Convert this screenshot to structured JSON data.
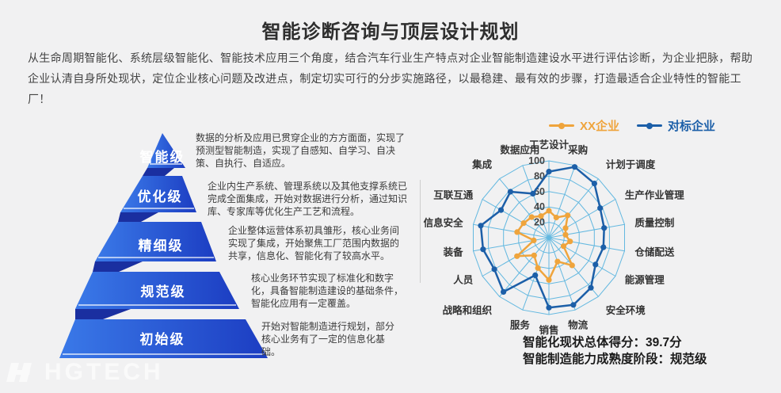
{
  "title": "智能诊断咨询与顶层设计规划",
  "intro": "从生命周期智能化、系统层级智能化、智能技术应用三个角度，结合汽车行业生产特点对企业智能制造建设水平进行评估诊断，为企业把脉，帮助企业认清自身所处现状，定位企业核心问题及改进点，制定切实可行的分步实施路径，以最稳建、最有效的步骤，打造最适合企业特性的智能工厂！",
  "pyramid": {
    "levels": [
      {
        "label": "智能级",
        "desc": "数据的分析及应用已贯穿企业的方方面面，实现了预测型智能制造，实现了自感知、自学习、自决策、自执行、自适应。"
      },
      {
        "label": "优化级",
        "desc": "企业内生产系统、管理系统以及其他支撑系统已完成全面集成，开始对数据进行分析，通过知识库、专家库等优化生产工艺和流程。"
      },
      {
        "label": "精细级",
        "desc": "企业整体运营体系初具雏形，核心业务间实现了集成，开始聚焦工厂范围内数据的共享，信息化、智能化有了较高水平。"
      },
      {
        "label": "规范级",
        "desc": "核心业务环节实现了标准化和数字化，具备智能制造建设的基础条件，智能化应用有一定覆盖。"
      },
      {
        "label": "初始级",
        "desc": "开始对智能制造进行规划，部分核心业务有了一定的信息化基础。"
      }
    ],
    "colors": {
      "face_light": "#3A79E8",
      "face_dark": "#1C3DC2",
      "fold": "#1A2FA0"
    }
  },
  "chart_data": {
    "type": "radar",
    "categories": [
      "工艺设计",
      "采购",
      "计划于调度",
      "生产作业管理",
      "质量控制",
      "仓储配送",
      "能源管理",
      "安全环境",
      "物流",
      "销售",
      "服务",
      "战略和组织",
      "人员",
      "装备",
      "信息安全",
      "互联互通",
      "集成",
      "数据应用"
    ],
    "series": [
      {
        "name": "XX企业",
        "color": "#EFA43C",
        "values": [
          35,
          28,
          38,
          25,
          22,
          28,
          22,
          47,
          33,
          55,
          42,
          30,
          48,
          20,
          42,
          38,
          35,
          30
        ]
      },
      {
        "name": "对标企业",
        "color": "#1C5FA8",
        "values": [
          86,
          98,
          92,
          77,
          73,
          72,
          70,
          85,
          93,
          91,
          52,
          92,
          82,
          87,
          90,
          72,
          78,
          61
        ]
      }
    ],
    "max": 100,
    "ticks": [
      20,
      40,
      60,
      80,
      100
    ],
    "grid_color": "#63B8E0",
    "legend_position": "top",
    "grid": true
  },
  "summary": {
    "score_line": "智能化现状总体得分：39.7分",
    "stage_line": "智能制造能力成熟度阶段：规范级"
  },
  "watermark": {
    "label": "HGTECH"
  }
}
